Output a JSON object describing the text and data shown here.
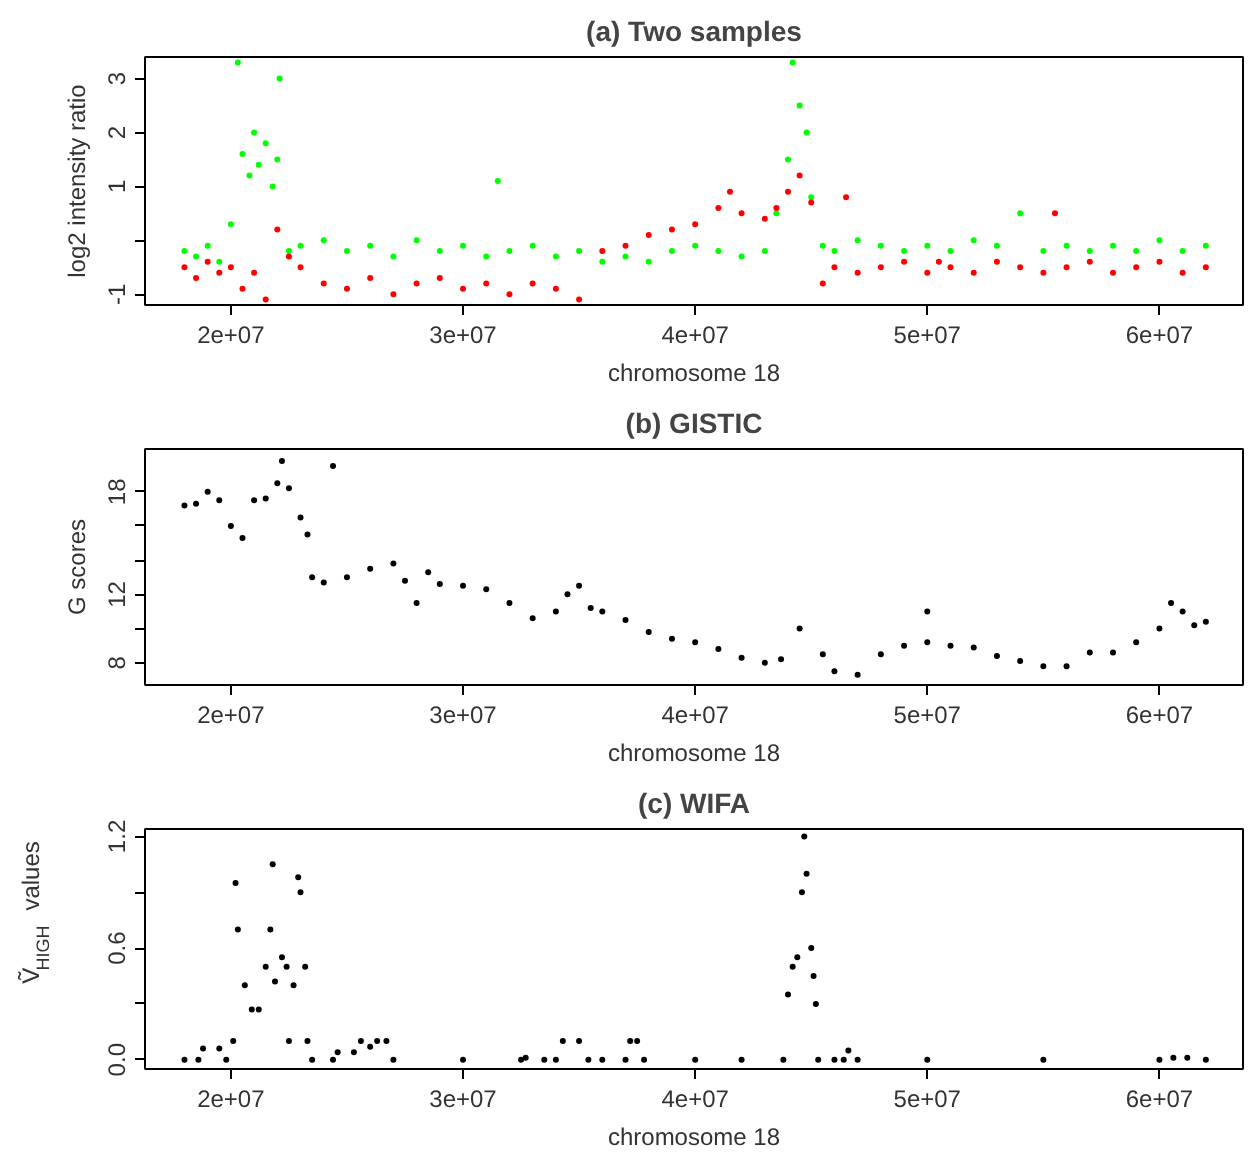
{
  "chart_data": [
    {
      "type": "scatter",
      "title": "(a) Two samples",
      "xlabel": "chromosome 18",
      "ylabel": "log2 intensity ratio",
      "marker": "circle",
      "xlim": [
        16300000,
        63600000
      ],
      "xticks": [
        {
          "value": 20000000,
          "label": "2e+07"
        },
        {
          "value": 30000000,
          "label": "3e+07"
        },
        {
          "value": 40000000,
          "label": "4e+07"
        },
        {
          "value": 50000000,
          "label": "5e+07"
        },
        {
          "value": 60000000,
          "label": "6e+07"
        }
      ],
      "ylim": [
        -1.2,
        3.4
      ],
      "yticks": [
        -1,
        {
          "value": 0,
          "label": null
        },
        1,
        2,
        3
      ],
      "series": [
        {
          "color": "#00ff00",
          "x": [
            18000000.0,
            18500000.0,
            19000000.0,
            19500000.0,
            20000000.0,
            20300000.0,
            20500000.0,
            20800000.0,
            21000000.0,
            21200000.0,
            21500000.0,
            21800000.0,
            22000000.0,
            22100000.0,
            22500000.0,
            23000000.0,
            24000000.0,
            25000000.0,
            26000000.0,
            27000000.0,
            28000000.0,
            29000000.0,
            30000000.0,
            31000000.0,
            31500000.0,
            32000000.0,
            33000000.0,
            34000000.0,
            35000000.0,
            36000000.0,
            37000000.0,
            38000000.0,
            39000000.0,
            40000000.0,
            41000000.0,
            42000000.0,
            43000000.0,
            43500000.0,
            44000000.0,
            44200000.0,
            44500000.0,
            44800000.0,
            45000000.0,
            45500000.0,
            46000000.0,
            47000000.0,
            48000000.0,
            49000000.0,
            50000000.0,
            51000000.0,
            52000000.0,
            53000000.0,
            54000000.0,
            55000000.0,
            56000000.0,
            57000000.0,
            58000000.0,
            59000000.0,
            60000000.0,
            61000000.0,
            62000000.0
          ],
          "values": [
            -0.2,
            -0.3,
            -0.1,
            -0.4,
            0.3,
            3.3,
            1.6,
            1.2,
            2.0,
            1.4,
            1.8,
            1.0,
            1.5,
            3.0,
            -0.2,
            -0.1,
            0.0,
            -0.2,
            -0.1,
            -0.3,
            0.0,
            -0.2,
            -0.1,
            -0.3,
            1.1,
            -0.2,
            -0.1,
            -0.3,
            -0.2,
            -0.4,
            -0.3,
            -0.4,
            -0.2,
            -0.1,
            -0.2,
            -0.3,
            -0.2,
            0.5,
            1.5,
            3.3,
            2.5,
            2.0,
            0.8,
            -0.1,
            -0.2,
            0.0,
            -0.1,
            -0.2,
            -0.1,
            -0.2,
            0.0,
            -0.1,
            0.5,
            -0.2,
            -0.1,
            -0.2,
            -0.1,
            -0.2,
            0.0,
            -0.2,
            -0.1
          ]
        },
        {
          "color": "#ff0000",
          "x": [
            18000000.0,
            18500000.0,
            19000000.0,
            19500000.0,
            20000000.0,
            20500000.0,
            21000000.0,
            21500000.0,
            22000000.0,
            22500000.0,
            23000000.0,
            24000000.0,
            25000000.0,
            26000000.0,
            27000000.0,
            28000000.0,
            29000000.0,
            30000000.0,
            31000000.0,
            32000000.0,
            33000000.0,
            34000000.0,
            35000000.0,
            36000000.0,
            37000000.0,
            38000000.0,
            39000000.0,
            40000000.0,
            41000000.0,
            41500000.0,
            42000000.0,
            43000000.0,
            43500000.0,
            44000000.0,
            44500000.0,
            45000000.0,
            45500000.0,
            46000000.0,
            46500000.0,
            47000000.0,
            48000000.0,
            49000000.0,
            50000000.0,
            50500000.0,
            51000000.0,
            52000000.0,
            53000000.0,
            54000000.0,
            55000000.0,
            55500000.0,
            56000000.0,
            57000000.0,
            58000000.0,
            59000000.0,
            60000000.0,
            61000000.0,
            62000000.0
          ],
          "values": [
            -0.5,
            -0.7,
            -0.4,
            -0.6,
            -0.5,
            -0.9,
            -0.6,
            -1.1,
            0.2,
            -0.3,
            -0.5,
            -0.8,
            -0.9,
            -0.7,
            -1.0,
            -0.8,
            -0.7,
            -0.9,
            -0.8,
            -1.0,
            -0.8,
            -0.9,
            -1.1,
            -0.2,
            -0.1,
            0.1,
            0.2,
            0.3,
            0.6,
            0.9,
            0.5,
            0.4,
            0.6,
            0.9,
            1.2,
            0.7,
            -0.8,
            -0.5,
            0.8,
            -0.6,
            -0.5,
            -0.4,
            -0.6,
            -0.4,
            -0.5,
            -0.6,
            -0.4,
            -0.5,
            -0.6,
            0.5,
            -0.5,
            -0.4,
            -0.6,
            -0.5,
            -0.4,
            -0.6,
            -0.5
          ]
        }
      ]
    },
    {
      "type": "scatter",
      "title": "(b) GISTIC",
      "xlabel": "chromosome 18",
      "ylabel": "G scores",
      "marker": "circle",
      "xlim": [
        16300000,
        63600000
      ],
      "xticks": [
        {
          "value": 20000000,
          "label": "2e+07"
        },
        {
          "value": 30000000,
          "label": "3e+07"
        },
        {
          "value": 40000000,
          "label": "4e+07"
        },
        {
          "value": 50000000,
          "label": "5e+07"
        },
        {
          "value": 60000000,
          "label": "6e+07"
        }
      ],
      "ylim": [
        6.7,
        20.5
      ],
      "yticks": [
        8,
        {
          "value": 10,
          "label": null
        },
        12,
        {
          "value": 14,
          "label": null
        },
        {
          "value": 16,
          "label": null
        },
        18
      ],
      "series": [
        {
          "color": "#000000",
          "x": [
            18000000.0,
            18500000.0,
            19000000.0,
            19500000.0,
            20000000.0,
            20500000.0,
            21000000.0,
            21500000.0,
            22000000.0,
            22200000.0,
            22500000.0,
            23000000.0,
            23300000.0,
            23500000.0,
            24000000.0,
            24400000.0,
            25000000.0,
            26000000.0,
            27000000.0,
            27500000.0,
            28000000.0,
            28500000.0,
            29000000.0,
            30000000.0,
            31000000.0,
            32000000.0,
            33000000.0,
            34000000.0,
            34500000.0,
            35000000.0,
            35500000.0,
            36000000.0,
            37000000.0,
            38000000.0,
            39000000.0,
            40000000.0,
            41000000.0,
            42000000.0,
            43000000.0,
            43700000.0,
            44500000.0,
            45500000.0,
            46000000.0,
            47000000.0,
            48000000.0,
            49000000.0,
            50000000.0,
            50000000.0,
            51000000.0,
            52000000.0,
            53000000.0,
            54000000.0,
            55000000.0,
            56000000.0,
            57000000.0,
            58000000.0,
            59000000.0,
            60000000.0,
            60500000.0,
            61000000.0,
            61500000.0,
            62000000.0
          ],
          "values": [
            17.2,
            17.3,
            18.0,
            17.5,
            16.0,
            15.3,
            17.5,
            17.6,
            18.5,
            19.8,
            18.2,
            16.5,
            15.5,
            13.0,
            12.7,
            19.5,
            13.0,
            13.5,
            13.8,
            12.8,
            11.5,
            13.3,
            12.6,
            12.5,
            12.3,
            11.5,
            10.6,
            11.0,
            12.0,
            12.5,
            11.2,
            11.0,
            10.5,
            9.8,
            9.4,
            9.2,
            8.8,
            8.3,
            8.0,
            8.2,
            10.0,
            8.5,
            7.5,
            7.3,
            8.5,
            9.0,
            9.2,
            11.0,
            9.0,
            8.9,
            8.4,
            8.1,
            7.8,
            7.8,
            8.6,
            8.6,
            9.2,
            10.0,
            11.5,
            11.0,
            10.2,
            10.4
          ]
        }
      ]
    },
    {
      "type": "scatter",
      "title": "(c) WIFA",
      "xlabel": "chromosome 18",
      "ylabel": "Ṽ$_{HIGH}$ values",
      "marker": "circle",
      "xlim": [
        16300000,
        63600000
      ],
      "xticks": [
        {
          "value": 20000000,
          "label": "2e+07"
        },
        {
          "value": 30000000,
          "label": "3e+07"
        },
        {
          "value": 40000000,
          "label": "4e+07"
        },
        {
          "value": 50000000,
          "label": "5e+07"
        },
        {
          "value": 60000000,
          "label": "6e+07"
        }
      ],
      "ylim": [
        -0.05,
        1.24
      ],
      "yticks": [
        {
          "value": 0,
          "label": "0.0"
        },
        {
          "value": 0.3,
          "label": null
        },
        0.6,
        {
          "value": 0.9,
          "label": null
        },
        1.2
      ],
      "series": [
        {
          "color": "#000000",
          "x": [
            18000000.0,
            18600000.0,
            18800000.0,
            19500000.0,
            19800000.0,
            20100000.0,
            20200000.0,
            20300000.0,
            20600000.0,
            20900000.0,
            21200000.0,
            21500000.0,
            21700000.0,
            21800000.0,
            21900000.0,
            22200000.0,
            22400000.0,
            22500000.0,
            22700000.0,
            22900000.0,
            23000000.0,
            23200000.0,
            23300000.0,
            23500000.0,
            24400000.0,
            24600000.0,
            25300000.0,
            25600000.0,
            26000000.0,
            26300000.0,
            26700000.0,
            27000000.0,
            30000000.0,
            32500000.0,
            32700000.0,
            33500000.0,
            34000000.0,
            34300000.0,
            35000000.0,
            35400000.0,
            36000000.0,
            37000000.0,
            37200000.0,
            37500000.0,
            37800000.0,
            40000000.0,
            42000000.0,
            43800000.0,
            44000000.0,
            44200000.0,
            44400000.0,
            44600000.0,
            44700000.0,
            44800000.0,
            45000000.0,
            45100000.0,
            45200000.0,
            45300000.0,
            46000000.0,
            46400000.0,
            46600000.0,
            47000000.0,
            50000000.0,
            55000000.0,
            60000000.0,
            60600000.0,
            61200000.0,
            62000000.0
          ],
          "values": [
            0.0,
            0.0,
            0.06,
            0.06,
            0.0,
            0.1,
            0.95,
            0.7,
            0.4,
            0.27,
            0.27,
            0.5,
            0.7,
            1.05,
            0.42,
            0.55,
            0.5,
            0.1,
            0.4,
            0.98,
            0.9,
            0.5,
            0.1,
            0.0,
            0.0,
            0.04,
            0.04,
            0.1,
            0.07,
            0.1,
            0.1,
            0.0,
            0.0,
            0.0,
            0.01,
            0.0,
            0.0,
            0.1,
            0.1,
            0.0,
            0.0,
            0.0,
            0.1,
            0.1,
            0.0,
            0.0,
            0.0,
            0.0,
            0.35,
            0.5,
            0.55,
            0.9,
            1.2,
            1.0,
            0.6,
            0.45,
            0.3,
            0.0,
            0.0,
            0.0,
            0.05,
            0.0,
            0.0,
            0.0,
            0.0,
            0.01,
            0.01,
            0.0
          ]
        }
      ]
    }
  ]
}
